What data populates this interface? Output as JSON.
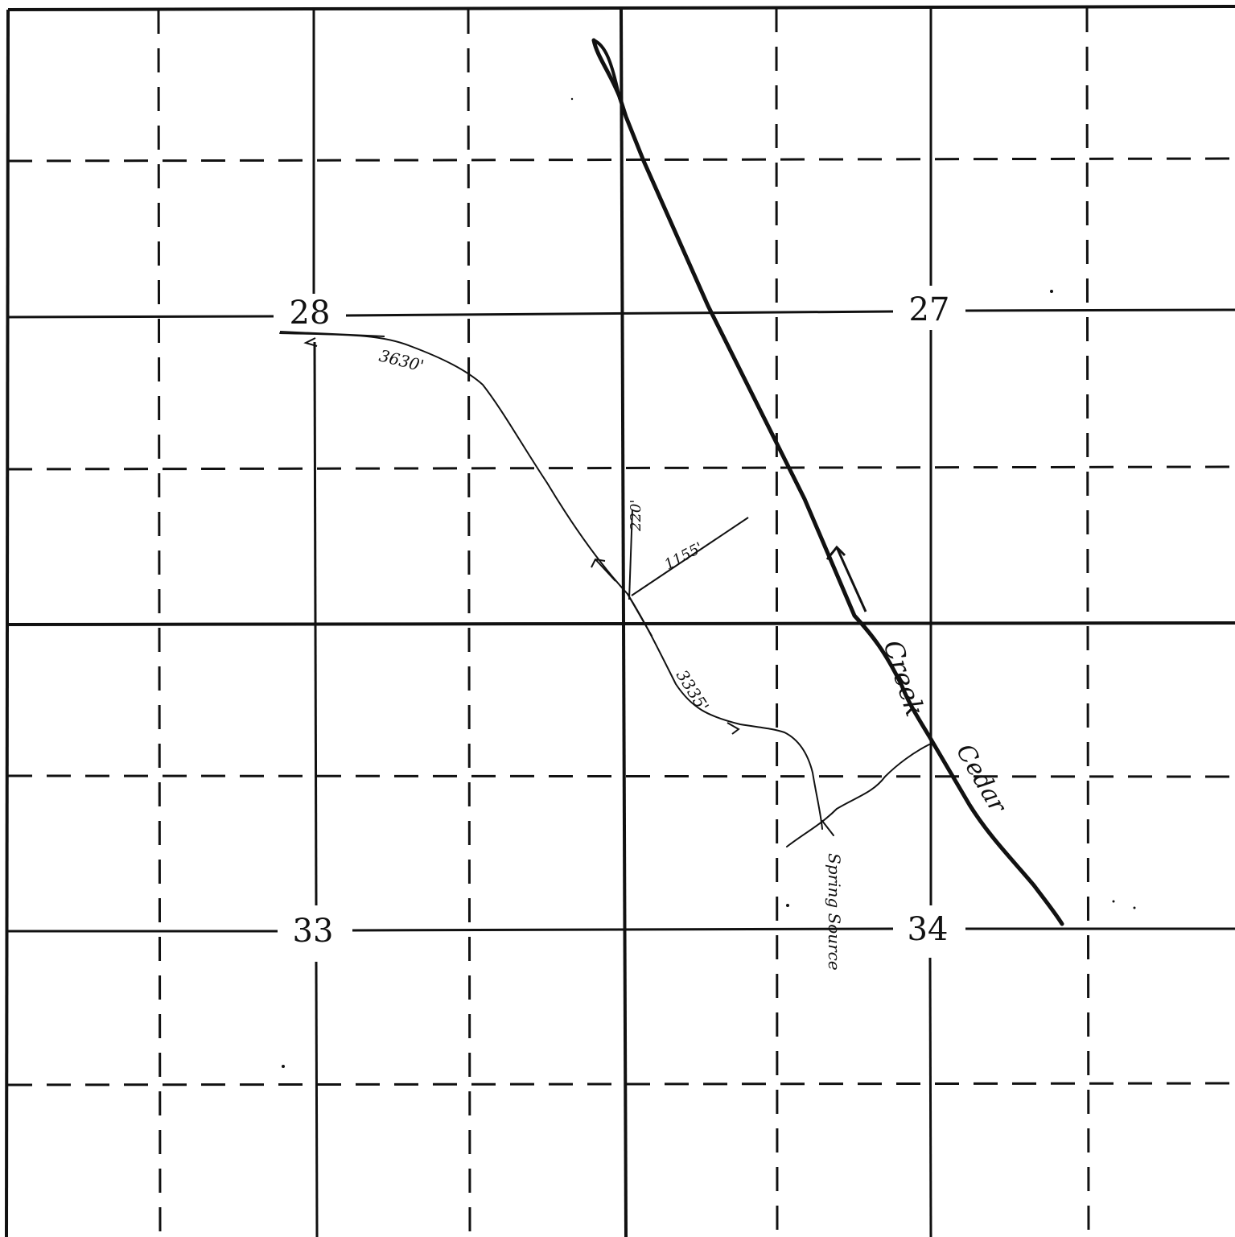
{
  "map": {
    "sections": [
      {
        "number": "28"
      },
      {
        "number": "27"
      },
      {
        "number": "33"
      },
      {
        "number": "34"
      }
    ],
    "annotations": {
      "distance_1": "3630'",
      "distance_2": "220'",
      "distance_3": "1155'",
      "distance_4": "3335'",
      "creek_word_1": "Creek",
      "creek_word_2": "Cedar",
      "spring_label": "Spring Source"
    },
    "colors": {
      "ink": "#111111",
      "paper": "#ffffff"
    }
  }
}
